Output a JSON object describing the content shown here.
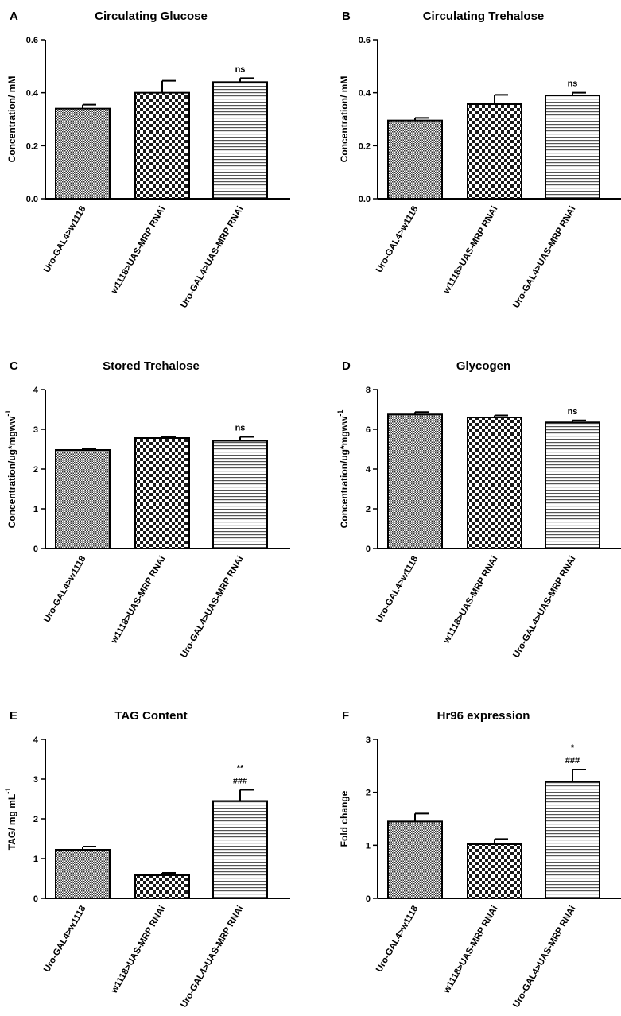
{
  "chart_data": [
    {
      "panel": "A",
      "type": "bar",
      "title": "Circulating Glucose",
      "ylabel": "Concentration/ mM",
      "ylim": [
        0,
        0.6
      ],
      "yticks": [
        "0.0",
        "0.2",
        "0.4",
        "0.6"
      ],
      "categories": [
        "Uro-GAL4>w1118",
        "w1118>UAS-MRP RNAi",
        "Uro-GAL4>UAS-MRP RNAi"
      ],
      "values": [
        0.34,
        0.4,
        0.44
      ],
      "errors": [
        0.015,
        0.045,
        0.015
      ],
      "annotations": [
        [],
        [],
        [
          "ns"
        ]
      ]
    },
    {
      "panel": "B",
      "type": "bar",
      "title": "Circulating Trehalose",
      "ylabel": "Concentration/ mM",
      "ylim": [
        0,
        0.6
      ],
      "yticks": [
        "0.0",
        "0.2",
        "0.4",
        "0.6"
      ],
      "categories": [
        "Uro-GAL4>w1118",
        "w1118>UAS-MRP RNAi",
        "Uro-GAL4>UAS-MRP RNAi"
      ],
      "values": [
        0.295,
        0.357,
        0.39
      ],
      "errors": [
        0.01,
        0.035,
        0.01
      ],
      "annotations": [
        [],
        [],
        [
          "ns"
        ]
      ]
    },
    {
      "panel": "C",
      "type": "bar",
      "title": "Stored Trehalose",
      "ylabel": "Concentration/ug*mgww",
      "ylabel_sup": "-1",
      "ylim": [
        0,
        4
      ],
      "yticks": [
        "0",
        "1",
        "2",
        "3",
        "4"
      ],
      "categories": [
        "Uro-GAL4>w1118",
        "w1118>UAS-MRP RNAi",
        "Uro-GAL4>UAS-MRP RNAi"
      ],
      "values": [
        2.48,
        2.78,
        2.71
      ],
      "errors": [
        0.04,
        0.04,
        0.1
      ],
      "annotations": [
        [],
        [],
        [
          "ns"
        ]
      ]
    },
    {
      "panel": "D",
      "type": "bar",
      "title": "Glycogen",
      "ylabel": "Concentration/ug*mgww",
      "ylabel_sup": "-1",
      "ylim": [
        0,
        8
      ],
      "yticks": [
        "0",
        "2",
        "4",
        "6",
        "8"
      ],
      "categories": [
        "Uro-GAL4>w1118",
        "w1118>UAS-MRP RNAi",
        "Uro-GAL4>UAS-MRP RNAi"
      ],
      "values": [
        6.75,
        6.6,
        6.35
      ],
      "errors": [
        0.12,
        0.1,
        0.1
      ],
      "annotations": [
        [],
        [],
        [
          "ns"
        ]
      ]
    },
    {
      "panel": "E",
      "type": "bar",
      "title": "TAG Content",
      "ylabel": "TAG/ mg mL",
      "ylabel_sup": "-1",
      "ylim": [
        0,
        4
      ],
      "yticks": [
        "0",
        "1",
        "2",
        "3",
        "4"
      ],
      "categories": [
        "Uro-GAL4>w1118",
        "w1118>UAS-MRP RNAi",
        "Uro-GAL4>UAS-MRP RNAi"
      ],
      "values": [
        1.22,
        0.58,
        2.45
      ],
      "errors": [
        0.08,
        0.06,
        0.28
      ],
      "annotations": [
        [],
        [],
        [
          "###",
          "**"
        ]
      ]
    },
    {
      "panel": "F",
      "type": "bar",
      "title": "Hr96 expression",
      "ylabel": "Fold change",
      "ylim": [
        0,
        3
      ],
      "yticks": [
        "0",
        "1",
        "2",
        "3"
      ],
      "categories": [
        "Uro-GAL4>w1118",
        "w1118>UAS-MRP RNAi",
        "Uro-GAL4>UAS-MRP RNAi"
      ],
      "values": [
        1.45,
        1.02,
        2.2
      ],
      "errors": [
        0.15,
        0.1,
        0.23
      ],
      "annotations": [
        [],
        [],
        [
          "###",
          "*"
        ]
      ]
    }
  ]
}
